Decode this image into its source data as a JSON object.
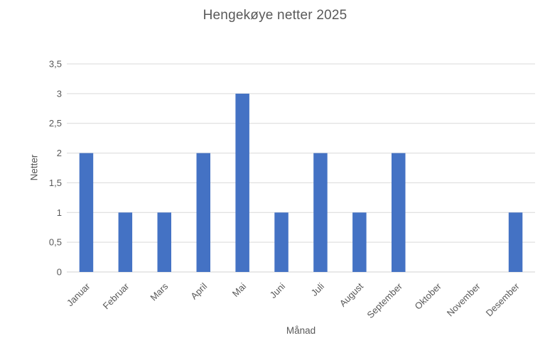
{
  "chart_data": {
    "type": "bar",
    "title": "Hengekøye netter 2025",
    "xlabel": "Månad",
    "ylabel": "Netter",
    "categories": [
      "Januar",
      "Februar",
      "Mars",
      "April",
      "Mai",
      "Juni",
      "Juli",
      "August",
      "September",
      "Oktober",
      "November",
      "Desember"
    ],
    "values": [
      2,
      1,
      1,
      2,
      3,
      1,
      2,
      1,
      2,
      0,
      0,
      1
    ],
    "ylim": [
      0,
      3.5
    ],
    "ytick_step": 0.5,
    "ytick_labels": [
      "0",
      "0,5",
      "1",
      "1,5",
      "2",
      "2,5",
      "3",
      "3,5"
    ],
    "grid": true,
    "legend_position": "none",
    "bar_color": "#4472C4",
    "gridline_color": "#D9D9D9",
    "axis_line_color": "#D0D0D0",
    "text_color": "#595959",
    "background_color": "#FFFFFF"
  }
}
